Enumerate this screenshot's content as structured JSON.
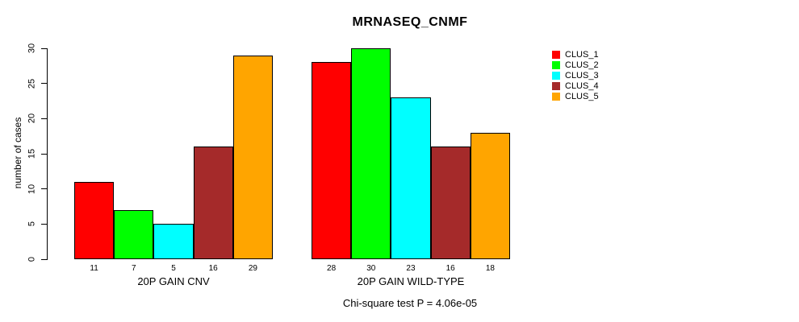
{
  "page": {
    "background_color": "#ffffff"
  },
  "chart_data": {
    "type": "bar",
    "title": "MRNASEQ_CNMF",
    "ylabel": "number of cases",
    "xlabel": "",
    "ylim": [
      0,
      30
    ],
    "yticks": [
      0,
      5,
      10,
      15,
      20,
      25,
      30
    ],
    "grid": false,
    "legend_position": "right",
    "bar_value_labels_shown": true,
    "categories": [
      "20P GAIN CNV",
      "20P GAIN WILD-TYPE"
    ],
    "series": [
      {
        "name": "CLUS_1",
        "color": "#FF0000",
        "values": [
          11,
          28
        ]
      },
      {
        "name": "CLUS_2",
        "color": "#00FF00",
        "values": [
          7,
          30
        ]
      },
      {
        "name": "CLUS_3",
        "color": "#00FFFF",
        "values": [
          5,
          23
        ]
      },
      {
        "name": "CLUS_4",
        "color": "#A52A2A",
        "values": [
          16,
          16
        ]
      },
      {
        "name": "CLUS_5",
        "color": "#FFA500",
        "values": [
          29,
          18
        ]
      }
    ],
    "annotation": "Chi-square test P = 4.06e-05"
  }
}
